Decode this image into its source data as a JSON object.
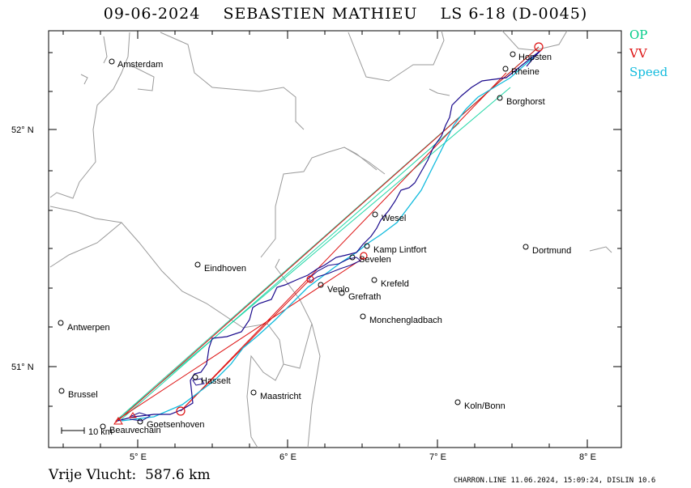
{
  "title": "09-06-2024    SEBASTIEN MATHIEU    LS 6-18 (D-0045)",
  "legend": {
    "op": "OP",
    "vv": "VV",
    "speed": "Speed"
  },
  "colors": {
    "op": "#00cc88",
    "vv": "#dd1111",
    "speed": "#11bbdd",
    "track": "#1a0a8c",
    "border": "#9a9a9a"
  },
  "axes": {
    "lat_labels": [
      "52° N",
      "51° N"
    ],
    "lon_labels": [
      "5° E",
      "6° E",
      "7° E",
      "8° E"
    ]
  },
  "cities": [
    {
      "name": "Amsterdam"
    },
    {
      "name": "Hopsten"
    },
    {
      "name": "Rheine"
    },
    {
      "name": "Borghorst"
    },
    {
      "name": "Wesel"
    },
    {
      "name": "Kamp Lintfort"
    },
    {
      "name": "Sevelen"
    },
    {
      "name": "Dortmund"
    },
    {
      "name": "Eindhoven"
    },
    {
      "name": "Krefeld"
    },
    {
      "name": "Venlo"
    },
    {
      "name": "Grefrath"
    },
    {
      "name": "Monchengladbach"
    },
    {
      "name": "Antwerpen"
    },
    {
      "name": "Hasselt"
    },
    {
      "name": "Brussel"
    },
    {
      "name": "Maastricht"
    },
    {
      "name": "Koln/Bonn"
    },
    {
      "name": "Goetsenhoven"
    },
    {
      "name": "Beauvechain"
    }
  ],
  "scale_label": "10 km",
  "distance_text": "Vrije Vlucht:  587.6 km",
  "footer_text": "CHARRON.LINE 11.06.2024, 15:09:24, DISLIN 10.6"
}
